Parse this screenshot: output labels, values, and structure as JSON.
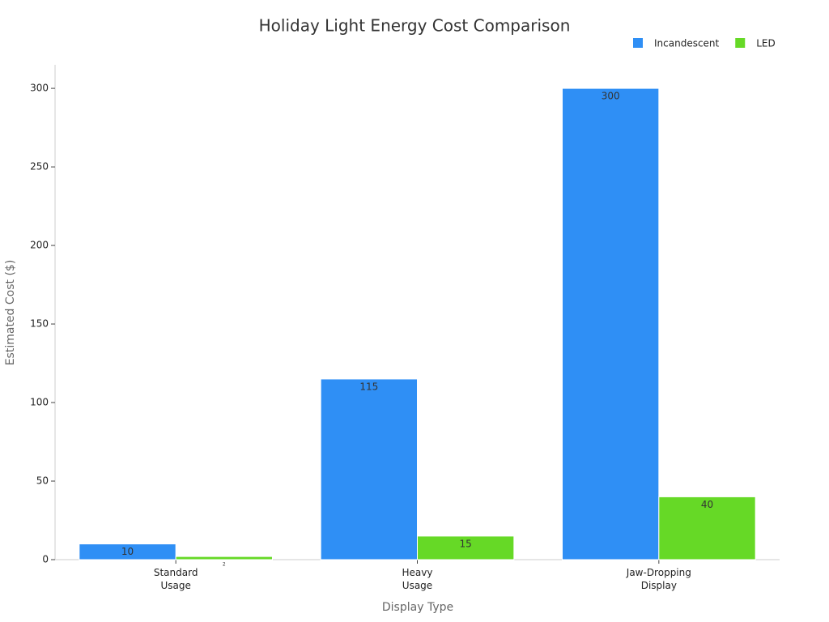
{
  "chart_data": {
    "type": "bar",
    "title": "Holiday Light Energy Cost Comparison",
    "x_label": "Display Type",
    "y_label": "Estimated Cost ($)",
    "categories": [
      "Standard Usage",
      "Heavy Usage",
      "Jaw-Dropping Display"
    ],
    "series": [
      {
        "name": "Incandescent",
        "color": "#2f8ff5",
        "values": [
          10,
          115,
          300
        ]
      },
      {
        "name": "LED",
        "color": "#66d926",
        "values": [
          2,
          15,
          40
        ]
      }
    ],
    "ylim": [
      0,
      315
    ],
    "yticks": [
      0,
      50,
      100,
      150,
      200,
      250,
      300
    ],
    "legend": "top-right",
    "grid": false
  }
}
